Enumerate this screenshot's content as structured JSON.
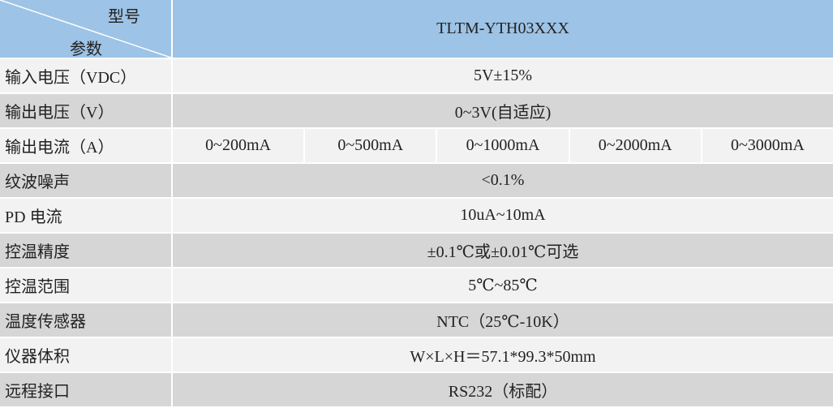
{
  "header": {
    "corner_top": "型号",
    "corner_bottom": "参数",
    "model": "TLTM-YTH03XXX"
  },
  "table": {
    "rows": [
      {
        "label": "输入电压（VDC）",
        "values": [
          "5V±15%"
        ]
      },
      {
        "label": "输出电压（V）",
        "values": [
          "0~3V(自适应)"
        ]
      },
      {
        "label": "输出电流（A）",
        "values": [
          "0~200mA",
          "0~500mA",
          "0~1000mA",
          "0~2000mA",
          "0~3000mA"
        ]
      },
      {
        "label": "纹波噪声",
        "values": [
          "<0.1%"
        ]
      },
      {
        "label": "PD 电流",
        "values": [
          "10uA~10mA"
        ]
      },
      {
        "label": "控温精度",
        "values": [
          "±0.1℃或±0.01℃可选"
        ]
      },
      {
        "label": "控温范围",
        "values": [
          "5℃~85℃"
        ]
      },
      {
        "label": "温度传感器",
        "values": [
          "NTC（25℃-10K）"
        ]
      },
      {
        "label": "仪器体积",
        "values": [
          "W×L×H＝57.1*99.3*50mm"
        ]
      },
      {
        "label": "远程接口",
        "values": [
          "RS232（标配）"
        ]
      }
    ]
  }
}
